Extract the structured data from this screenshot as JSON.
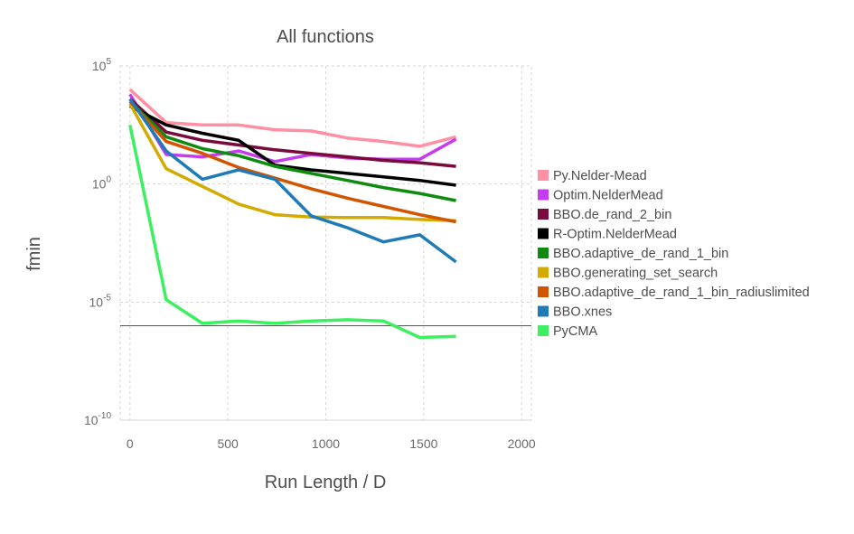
{
  "chart_data": {
    "type": "line",
    "title": "All functions",
    "xlabel": "Run Length / D",
    "ylabel": "fmin",
    "xlim": [
      -50,
      2050
    ],
    "ylim_log10": [
      -10,
      5
    ],
    "y_scale": "log",
    "grid": true,
    "legend_placement": "right",
    "x_ticks": [
      {
        "value": 0,
        "label": "0"
      },
      {
        "value": 500,
        "label": "500"
      },
      {
        "value": 1000,
        "label": "1000"
      },
      {
        "value": 1500,
        "label": "1500"
      },
      {
        "value": 2000,
        "label": "2000"
      }
    ],
    "y_ticks": [
      {
        "exp": 5,
        "base": "10",
        "sup": "5"
      },
      {
        "exp": 0,
        "base": "10",
        "sup": "0"
      },
      {
        "exp": -5,
        "base": "10",
        "sup": "-5"
      },
      {
        "exp": -10,
        "base": "10",
        "sup": "-10"
      }
    ],
    "reference_line_log10": -6,
    "series": [
      {
        "name": "Py.Nelder-Mead",
        "color": "#ff8fa3",
        "x": [
          0,
          185,
          370,
          555,
          740,
          925,
          1110,
          1295,
          1480,
          1665
        ],
        "log10_y": [
          4.0,
          2.6,
          2.5,
          2.5,
          2.3,
          2.25,
          1.95,
          1.8,
          1.6,
          2.0
        ]
      },
      {
        "name": "Optim.NelderMead",
        "color": "#c53bf0",
        "x": [
          0,
          185,
          370,
          555,
          740,
          925,
          1110,
          1295,
          1480,
          1665
        ],
        "log10_y": [
          3.8,
          1.25,
          1.15,
          1.4,
          0.95,
          1.25,
          1.1,
          1.05,
          1.05,
          1.9
        ]
      },
      {
        "name": "BBO.de_rand_2_bin",
        "color": "#7a0a3b",
        "x": [
          0,
          185,
          370,
          555,
          740,
          925,
          1110,
          1295,
          1480,
          1665
        ],
        "log10_y": [
          3.6,
          2.2,
          1.85,
          1.65,
          1.45,
          1.3,
          1.15,
          1.0,
          0.9,
          0.75
        ]
      },
      {
        "name": "R-Optim.NelderMead",
        "color": "#000000",
        "x": [
          0,
          185,
          370,
          555,
          740,
          925,
          1110,
          1295,
          1480,
          1665
        ],
        "log10_y": [
          3.3,
          2.5,
          2.15,
          1.85,
          0.8,
          0.6,
          0.45,
          0.3,
          0.15,
          -0.05
        ]
      },
      {
        "name": "BBO.adaptive_de_rand_1_bin",
        "color": "#0f8c0f",
        "x": [
          0,
          185,
          370,
          555,
          740,
          925,
          1110,
          1295,
          1480,
          1665
        ],
        "log10_y": [
          3.5,
          2.0,
          1.5,
          1.2,
          0.75,
          0.45,
          0.15,
          -0.15,
          -0.4,
          -0.7
        ]
      },
      {
        "name": "BBO.generating_set_search",
        "color": "#d4aa00",
        "x": [
          0,
          185,
          370,
          555,
          740,
          925,
          1110,
          1295,
          1480,
          1665
        ],
        "log10_y": [
          3.4,
          0.65,
          -0.1,
          -0.85,
          -1.3,
          -1.4,
          -1.42,
          -1.42,
          -1.5,
          -1.55
        ]
      },
      {
        "name": "BBO.adaptive_de_rand_1_bin_radiuslimited",
        "color": "#d35400",
        "x": [
          0,
          185,
          370,
          555,
          740,
          925,
          1110,
          1295,
          1480,
          1665
        ],
        "log10_y": [
          3.5,
          1.8,
          1.3,
          0.7,
          0.25,
          -0.2,
          -0.6,
          -0.95,
          -1.3,
          -1.6
        ]
      },
      {
        "name": "BBO.xnes",
        "color": "#1f7ab8",
        "x": [
          0,
          185,
          370,
          555,
          740,
          925,
          1110,
          1295,
          1480,
          1665
        ],
        "log10_y": [
          3.6,
          1.4,
          0.2,
          0.6,
          0.2,
          -1.35,
          -1.85,
          -2.45,
          -2.15,
          -3.3
        ]
      },
      {
        "name": "PyCMA",
        "color": "#3cf060",
        "x": [
          0,
          185,
          370,
          555,
          740,
          925,
          1110,
          1295,
          1480,
          1665
        ],
        "log10_y": [
          2.5,
          -4.9,
          -5.9,
          -5.8,
          -5.9,
          -5.8,
          -5.75,
          -5.8,
          -6.5,
          -6.45
        ]
      }
    ]
  }
}
